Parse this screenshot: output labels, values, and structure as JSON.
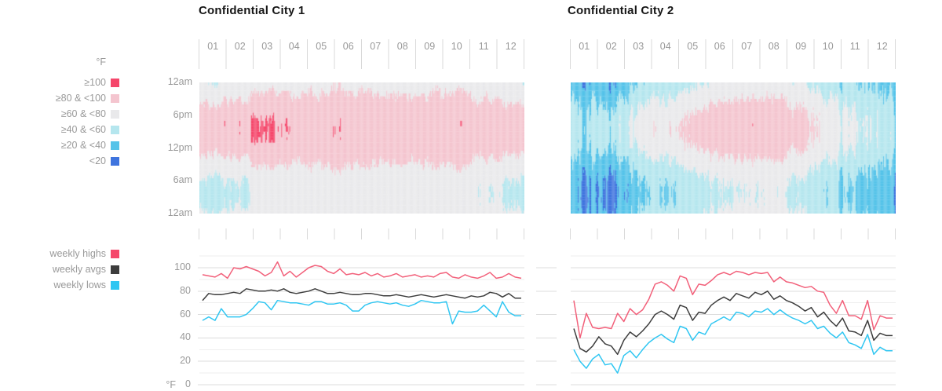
{
  "header": {
    "city1_title": "Confidential City 1",
    "city2_title": "Confidential City 2"
  },
  "heatmap_legend": {
    "unit": "°F",
    "items": [
      {
        "label": "≥100",
        "color": "#f5476b"
      },
      {
        "label": "≥80 & <100",
        "color": "#f4c5cf"
      },
      {
        "label": "≥60 & <80",
        "color": "#e9e9eb"
      },
      {
        "label": "≥40 & <60",
        "color": "#b5e6ee"
      },
      {
        "label": "≥20 & <40",
        "color": "#55c3e9"
      },
      {
        "label": "<20",
        "color": "#3f74de"
      }
    ]
  },
  "line_legend": {
    "items": [
      {
        "label": "weekly highs",
        "color": "#f5476b",
        "line_color": "#f2607a"
      },
      {
        "label": "weekly avgs",
        "color": "#3d3d3d",
        "line_color": "#3d3d3d"
      },
      {
        "label": "weekly lows",
        "color": "#2fc6f2",
        "line_color": "#2fc6f2"
      }
    ]
  },
  "line_axis": {
    "unit": "°F",
    "tick_labels": [
      "100",
      "80",
      "60",
      "40",
      "20",
      "0"
    ],
    "tick_values": [
      100,
      80,
      60,
      40,
      20,
      0
    ]
  },
  "months": [
    "01",
    "02",
    "03",
    "04",
    "05",
    "06",
    "07",
    "08",
    "09",
    "10",
    "11",
    "12"
  ],
  "time_labels": [
    "12am",
    "6pm",
    "12pm",
    "6am",
    "12am"
  ],
  "buckets": {
    "thresholds": [
      100,
      80,
      60,
      40,
      20
    ],
    "colors": [
      "#f5476b",
      "#f4c5cf",
      "#e9e9eb",
      "#b5e6ee",
      "#55c3e9",
      "#3f74de"
    ]
  },
  "chart_data": [
    {
      "id": "heatmap-city1",
      "type": "heatmap",
      "title": "Confidential City 1",
      "x_categories": [
        "01",
        "02",
        "03",
        "04",
        "05",
        "06",
        "07",
        "08",
        "09",
        "10",
        "11",
        "12"
      ],
      "y_labels": [
        "12am",
        "6pm",
        "12pm",
        "6am",
        "12am"
      ],
      "unit": "°F",
      "legend": [
        "≥100",
        "≥80 & <100",
        "≥60 & <80",
        "≥40 & <60",
        "≥20 & <40",
        "<20"
      ],
      "monthly_high": [
        94,
        97,
        102,
        98,
        96,
        95,
        94,
        93,
        94,
        94,
        93,
        92
      ],
      "monthly_low": [
        54,
        58,
        66,
        69,
        70,
        69,
        68,
        68,
        69,
        68,
        63,
        57
      ],
      "day_noise": [
        5,
        4
      ],
      "seed": 11
    },
    {
      "id": "heatmap-city2",
      "type": "heatmap",
      "title": "Confidential City 2",
      "x_categories": [
        "01",
        "02",
        "03",
        "04",
        "05",
        "06",
        "07",
        "08",
        "09",
        "10",
        "11",
        "12"
      ],
      "y_labels": [
        "12am",
        "6pm",
        "12pm",
        "6am",
        "12am"
      ],
      "unit": "°F",
      "legend": [
        "≥100",
        "≥80 & <100",
        "≥60 & <80",
        "≥40 & <60",
        "≥20 & <40",
        "<20"
      ],
      "monthly_high": [
        46,
        52,
        62,
        76,
        86,
        93,
        96,
        94,
        86,
        74,
        60,
        52
      ],
      "monthly_low": [
        20,
        18,
        30,
        42,
        50,
        58,
        63,
        62,
        54,
        44,
        33,
        27
      ],
      "day_noise": [
        13,
        5
      ],
      "seed": 47
    },
    {
      "id": "weekly-city1",
      "type": "line",
      "title": "Confidential City 1",
      "xlabel": "",
      "ylabel": "°F",
      "ylim": [
        0,
        110
      ],
      "yticks": [
        100,
        80,
        60,
        40,
        20,
        0
      ],
      "weeks": 52,
      "series": [
        {
          "name": "weekly highs",
          "color": "#f2607a",
          "values": [
            94,
            93,
            92,
            95,
            91,
            100,
            99,
            101,
            99,
            97,
            93,
            96,
            105,
            93,
            97,
            92,
            96,
            100,
            102,
            101,
            97,
            95,
            99,
            94,
            95,
            94,
            96,
            93,
            95,
            92,
            93,
            95,
            92,
            93,
            94,
            92,
            93,
            92,
            95,
            96,
            92,
            91,
            94,
            92,
            91,
            93,
            96,
            91,
            92,
            95,
            92,
            91
          ]
        },
        {
          "name": "weekly avgs",
          "color": "#3d3d3d",
          "values": [
            72,
            78,
            77,
            77,
            78,
            79,
            78,
            82,
            81,
            80,
            80,
            81,
            80,
            82,
            79,
            78,
            79,
            80,
            82,
            80,
            78,
            78,
            79,
            78,
            77,
            77,
            78,
            78,
            77,
            76,
            76,
            77,
            76,
            75,
            76,
            77,
            76,
            75,
            76,
            77,
            76,
            75,
            74,
            76,
            75,
            76,
            79,
            78,
            75,
            78,
            74,
            74
          ]
        },
        {
          "name": "weekly lows",
          "color": "#2fc6f2",
          "values": [
            55,
            58,
            55,
            65,
            58,
            58,
            58,
            60,
            65,
            71,
            70,
            64,
            72,
            71,
            70,
            70,
            69,
            68,
            71,
            71,
            69,
            69,
            70,
            68,
            63,
            63,
            68,
            70,
            71,
            70,
            69,
            70,
            68,
            67,
            69,
            72,
            71,
            70,
            70,
            71,
            52,
            63,
            62,
            62,
            63,
            68,
            63,
            58,
            71,
            62,
            59,
            59
          ]
        }
      ]
    },
    {
      "id": "weekly-city2",
      "type": "line",
      "title": "Confidential City 2",
      "xlabel": "",
      "ylabel": "°F",
      "ylim": [
        0,
        110
      ],
      "yticks": [
        100,
        80,
        60,
        40,
        20,
        0
      ],
      "weeks": 52,
      "series": [
        {
          "name": "weekly highs",
          "color": "#f2607a",
          "values": [
            72,
            40,
            61,
            49,
            48,
            49,
            48,
            61,
            54,
            65,
            60,
            64,
            73,
            86,
            88,
            85,
            80,
            93,
            91,
            77,
            86,
            85,
            89,
            94,
            96,
            94,
            97,
            96,
            94,
            96,
            95,
            96,
            88,
            92,
            88,
            87,
            85,
            83,
            84,
            80,
            79,
            68,
            61,
            72,
            59,
            59,
            56,
            72,
            47,
            59,
            57,
            57
          ]
        },
        {
          "name": "weekly avgs",
          "color": "#3d3d3d",
          "values": [
            48,
            31,
            28,
            33,
            41,
            35,
            33,
            26,
            38,
            45,
            41,
            46,
            52,
            60,
            63,
            60,
            56,
            68,
            66,
            55,
            62,
            61,
            68,
            72,
            75,
            72,
            78,
            76,
            74,
            79,
            77,
            80,
            73,
            76,
            72,
            70,
            67,
            63,
            66,
            58,
            62,
            55,
            50,
            57,
            46,
            45,
            42,
            55,
            38,
            44,
            42,
            42
          ]
        },
        {
          "name": "weekly lows",
          "color": "#2fc6f2",
          "values": [
            30,
            20,
            14,
            22,
            26,
            17,
            18,
            10,
            25,
            29,
            23,
            30,
            36,
            40,
            43,
            39,
            36,
            50,
            48,
            38,
            45,
            43,
            52,
            55,
            58,
            55,
            62,
            61,
            58,
            63,
            62,
            65,
            60,
            64,
            60,
            57,
            55,
            52,
            55,
            48,
            50,
            44,
            40,
            45,
            36,
            34,
            31,
            43,
            26,
            32,
            29,
            29
          ]
        }
      ]
    }
  ]
}
